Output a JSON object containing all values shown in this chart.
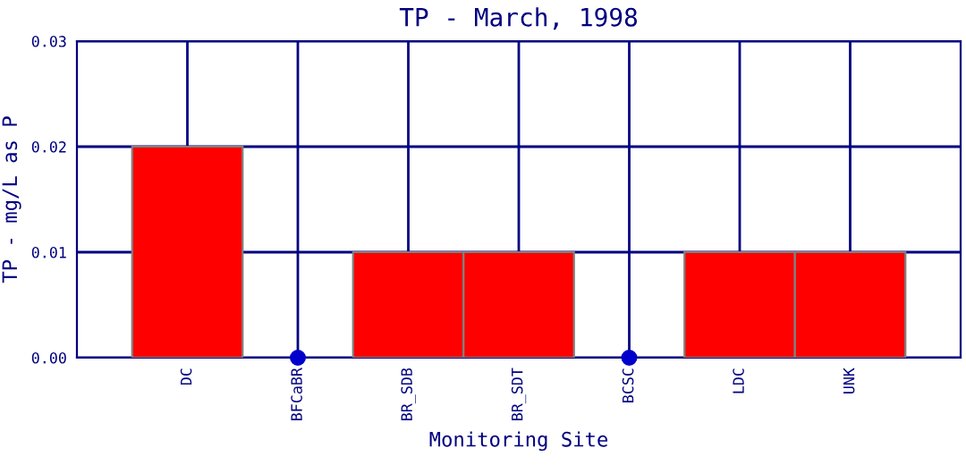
{
  "chart_data": {
    "type": "bar",
    "title": "TP - March, 1998",
    "xlabel": "Monitoring Site",
    "ylabel": "TP - mg/L as P",
    "categories": [
      "DC",
      "BFCaBR",
      "BR_SDB",
      "BR_SDT",
      "BCSC",
      "LDC",
      "UNK"
    ],
    "series": [
      {
        "color": "#ff0000",
        "values": [
          0.02,
          null,
          0.01,
          0.01,
          null,
          0.01,
          0.01
        ]
      },
      {
        "type": "scatter",
        "color": "#0000cc",
        "x": [
          "BFCaBR",
          "BCSC"
        ],
        "values": [
          0,
          0
        ],
        "marker": "circle"
      }
    ],
    "ylim": [
      0,
      0.03
    ],
    "yticks": [
      {
        "value": 0,
        "label": "0.00"
      },
      {
        "value": 0.01,
        "label": "0.01"
      },
      {
        "value": 0.02,
        "label": "0.02"
      },
      {
        "value": 0.03,
        "label": "0.03"
      }
    ],
    "grid": true
  }
}
